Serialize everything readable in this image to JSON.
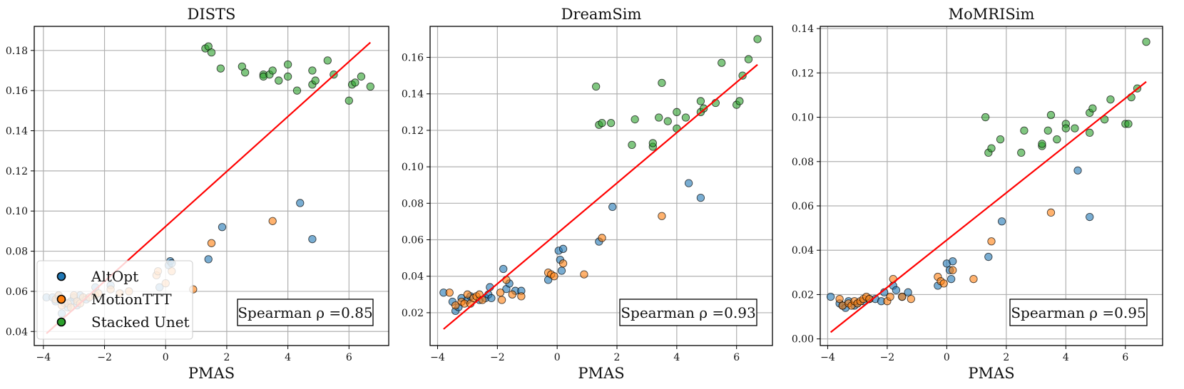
{
  "figure": {
    "legend": [
      {
        "label": "AltOpt",
        "color": "#1f77b4"
      },
      {
        "label": "MotionTTT",
        "color": "#ff7f0e"
      },
      {
        "label": "Stacked Unet",
        "color": "#2ca02c"
      }
    ],
    "fit_color": "#ff0000"
  },
  "chart_data": [
    {
      "type": "scatter",
      "title": "DISTS",
      "xlabel": "PMAS",
      "ylabel": "",
      "xlim": [
        -4.3,
        7.3
      ],
      "ylim": [
        0.033,
        0.192
      ],
      "xticks": [
        -4,
        -2,
        0,
        2,
        4,
        6
      ],
      "xtick_labels": [
        "−4",
        "−2",
        "0",
        "2",
        "4",
        "6"
      ],
      "yticks": [
        0.04,
        0.06,
        0.08,
        0.1,
        0.12,
        0.14,
        0.16,
        0.18
      ],
      "ytick_labels": [
        "0.04",
        "0.06",
        "0.08",
        "0.10",
        "0.12",
        "0.14",
        "0.16",
        "0.18"
      ],
      "grid": true,
      "legend_position": "lower-left",
      "annotation": "Spearman ρ =0.85",
      "fit_line": {
        "x": [
          -3.9,
          6.7
        ],
        "y": [
          0.039,
          0.184
        ]
      },
      "series": [
        {
          "name": "AltOpt",
          "points": [
            [
              -3.9,
              0.057
            ],
            [
              -3.7,
              0.057
            ],
            [
              -3.6,
              0.055
            ],
            [
              -3.5,
              0.058
            ],
            [
              -3.4,
              0.049
            ],
            [
              -3.3,
              0.054
            ],
            [
              -3.2,
              0.052
            ],
            [
              -3.1,
              0.055
            ],
            [
              -3.0,
              0.057
            ],
            [
              -2.9,
              0.053
            ],
            [
              -2.8,
              0.058
            ],
            [
              -2.6,
              0.056
            ],
            [
              -2.3,
              0.062
            ],
            [
              -1.8,
              0.063
            ],
            [
              -0.2,
              0.062
            ],
            [
              0.1,
              0.073
            ],
            [
              0.15,
              0.075
            ],
            [
              0.2,
              0.074
            ],
            [
              1.4,
              0.076
            ],
            [
              1.85,
              0.092
            ],
            [
              4.4,
              0.104
            ],
            [
              4.8,
              0.086
            ]
          ]
        },
        {
          "name": "MotionTTT",
          "points": [
            [
              -3.6,
              0.056
            ],
            [
              -3.5,
              0.058
            ],
            [
              -3.4,
              0.053
            ],
            [
              -3.2,
              0.054
            ],
            [
              -3.1,
              0.052
            ],
            [
              -3.0,
              0.058
            ],
            [
              -2.9,
              0.055
            ],
            [
              -2.8,
              0.054
            ],
            [
              -2.7,
              0.057
            ],
            [
              -2.5,
              0.057
            ],
            [
              -2.3,
              0.058
            ],
            [
              -2.2,
              0.059
            ],
            [
              -1.8,
              0.061
            ],
            [
              -1.5,
              0.059
            ],
            [
              -1.2,
              0.06
            ],
            [
              -0.3,
              0.068
            ],
            [
              -0.25,
              0.07
            ],
            [
              0.0,
              0.064
            ],
            [
              0.2,
              0.07
            ],
            [
              0.9,
              0.061
            ],
            [
              1.5,
              0.084
            ],
            [
              3.5,
              0.095
            ]
          ]
        },
        {
          "name": "Stacked Unet",
          "points": [
            [
              1.3,
              0.181
            ],
            [
              1.4,
              0.182
            ],
            [
              1.5,
              0.179
            ],
            [
              1.8,
              0.171
            ],
            [
              2.5,
              0.172
            ],
            [
              2.6,
              0.169
            ],
            [
              3.2,
              0.168
            ],
            [
              3.2,
              0.167
            ],
            [
              3.4,
              0.168
            ],
            [
              3.5,
              0.17
            ],
            [
              3.7,
              0.165
            ],
            [
              4.0,
              0.173
            ],
            [
              4.0,
              0.167
            ],
            [
              4.3,
              0.16
            ],
            [
              4.8,
              0.17
            ],
            [
              4.8,
              0.163
            ],
            [
              4.9,
              0.165
            ],
            [
              5.3,
              0.175
            ],
            [
              5.5,
              0.168
            ],
            [
              6.0,
              0.155
            ],
            [
              6.1,
              0.163
            ],
            [
              6.2,
              0.164
            ],
            [
              6.4,
              0.167
            ],
            [
              6.7,
              0.162
            ]
          ]
        }
      ]
    },
    {
      "type": "scatter",
      "title": "DreamSim",
      "xlabel": "PMAS",
      "ylabel": "",
      "xlim": [
        -4.25,
        7.2
      ],
      "ylim": [
        0.002,
        0.177
      ],
      "xticks": [
        -4,
        -2,
        0,
        2,
        4,
        6
      ],
      "xtick_labels": [
        "−4",
        "−2",
        "0",
        "2",
        "4",
        "6"
      ],
      "yticks": [
        0.02,
        0.04,
        0.06,
        0.08,
        0.1,
        0.12,
        0.14,
        0.16
      ],
      "ytick_labels": [
        "0.02",
        "0.04",
        "0.06",
        "0.08",
        "0.10",
        "0.12",
        "0.14",
        "0.16"
      ],
      "grid": true,
      "annotation": "Spearman ρ =0.93",
      "fit_line": {
        "x": [
          -3.8,
          6.7
        ],
        "y": [
          0.011,
          0.156
        ]
      },
      "series": [
        {
          "name": "AltOpt",
          "points": [
            [
              -3.8,
              0.031
            ],
            [
              -3.5,
              0.026
            ],
            [
              -3.4,
              0.021
            ],
            [
              -3.3,
              0.023
            ],
            [
              -3.2,
              0.028
            ],
            [
              -3.0,
              0.027
            ],
            [
              -2.9,
              0.029
            ],
            [
              -2.6,
              0.027
            ],
            [
              -2.4,
              0.028
            ],
            [
              -2.3,
              0.03
            ],
            [
              -2.25,
              0.034
            ],
            [
              -2.2,
              0.028
            ],
            [
              -1.8,
              0.044
            ],
            [
              -1.7,
              0.033
            ],
            [
              -1.6,
              0.036
            ],
            [
              -1.4,
              0.032
            ],
            [
              -1.2,
              0.032
            ],
            [
              -0.3,
              0.038
            ],
            [
              0.05,
              0.054
            ],
            [
              0.1,
              0.049
            ],
            [
              0.15,
              0.043
            ],
            [
              0.2,
              0.055
            ],
            [
              1.4,
              0.059
            ],
            [
              1.85,
              0.078
            ],
            [
              4.4,
              0.091
            ],
            [
              4.8,
              0.083
            ]
          ]
        },
        {
          "name": "MotionTTT",
          "points": [
            [
              -3.6,
              0.031
            ],
            [
              -3.4,
              0.024
            ],
            [
              -3.2,
              0.026
            ],
            [
              -3.1,
              0.025
            ],
            [
              -3.0,
              0.03
            ],
            [
              -2.9,
              0.025
            ],
            [
              -2.8,
              0.028
            ],
            [
              -2.7,
              0.029
            ],
            [
              -2.6,
              0.03
            ],
            [
              -2.5,
              0.027
            ],
            [
              -1.9,
              0.031
            ],
            [
              -1.85,
              0.027
            ],
            [
              -1.7,
              0.038
            ],
            [
              -1.5,
              0.03
            ],
            [
              -1.2,
              0.029
            ],
            [
              -0.3,
              0.042
            ],
            [
              -0.2,
              0.041
            ],
            [
              -0.1,
              0.04
            ],
            [
              0.2,
              0.047
            ],
            [
              0.9,
              0.041
            ],
            [
              1.5,
              0.061
            ],
            [
              3.5,
              0.073
            ]
          ]
        },
        {
          "name": "Stacked Unet",
          "points": [
            [
              1.3,
              0.144
            ],
            [
              1.4,
              0.123
            ],
            [
              1.5,
              0.124
            ],
            [
              1.8,
              0.124
            ],
            [
              2.5,
              0.112
            ],
            [
              2.6,
              0.126
            ],
            [
              3.2,
              0.111
            ],
            [
              3.2,
              0.113
            ],
            [
              3.4,
              0.127
            ],
            [
              3.5,
              0.146
            ],
            [
              3.7,
              0.125
            ],
            [
              4.0,
              0.13
            ],
            [
              4.0,
              0.121
            ],
            [
              4.3,
              0.127
            ],
            [
              4.8,
              0.136
            ],
            [
              4.8,
              0.13
            ],
            [
              4.9,
              0.132
            ],
            [
              5.3,
              0.135
            ],
            [
              5.5,
              0.157
            ],
            [
              6.0,
              0.134
            ],
            [
              6.1,
              0.136
            ],
            [
              6.2,
              0.15
            ],
            [
              6.4,
              0.159
            ],
            [
              6.7,
              0.17
            ]
          ]
        }
      ]
    },
    {
      "type": "scatter",
      "title": "MoMRISim",
      "xlabel": "PMAS",
      "ylabel": "",
      "xlim": [
        -4.25,
        7.25
      ],
      "ylim": [
        -0.003,
        0.141
      ],
      "xticks": [
        -4,
        -2,
        0,
        2,
        4,
        6
      ],
      "xtick_labels": [
        "−4",
        "−2",
        "0",
        "2",
        "4",
        "6"
      ],
      "yticks": [
        0.0,
        0.02,
        0.04,
        0.06,
        0.08,
        0.1,
        0.12,
        0.14
      ],
      "ytick_labels": [
        "0.00",
        "0.02",
        "0.04",
        "0.06",
        "0.08",
        "0.10",
        "0.12",
        "0.14"
      ],
      "grid": true,
      "annotation": "Spearman ρ =0.95",
      "fit_line": {
        "x": [
          -3.9,
          6.7
        ],
        "y": [
          0.003,
          0.116
        ]
      },
      "series": [
        {
          "name": "AltOpt",
          "points": [
            [
              -3.9,
              0.019
            ],
            [
              -3.6,
              0.016
            ],
            [
              -3.5,
              0.015
            ],
            [
              -3.4,
              0.014
            ],
            [
              -3.3,
              0.017
            ],
            [
              -3.1,
              0.015
            ],
            [
              -3.0,
              0.016
            ],
            [
              -2.8,
              0.017
            ],
            [
              -2.6,
              0.018
            ],
            [
              -2.4,
              0.018
            ],
            [
              -2.2,
              0.017
            ],
            [
              -2.1,
              0.021
            ],
            [
              -1.8,
              0.024
            ],
            [
              -1.7,
              0.022
            ],
            [
              -1.5,
              0.019
            ],
            [
              -1.3,
              0.021
            ],
            [
              -0.3,
              0.024
            ],
            [
              0.0,
              0.034
            ],
            [
              0.1,
              0.031
            ],
            [
              0.15,
              0.027
            ],
            [
              0.2,
              0.035
            ],
            [
              1.4,
              0.037
            ],
            [
              1.85,
              0.053
            ],
            [
              4.4,
              0.076
            ],
            [
              4.8,
              0.055
            ]
          ]
        },
        {
          "name": "MotionTTT",
          "points": [
            [
              -3.6,
              0.018
            ],
            [
              -3.5,
              0.015
            ],
            [
              -3.3,
              0.016
            ],
            [
              -3.2,
              0.015
            ],
            [
              -3.1,
              0.017
            ],
            [
              -3.0,
              0.016
            ],
            [
              -2.9,
              0.017
            ],
            [
              -2.8,
              0.018
            ],
            [
              -2.7,
              0.019
            ],
            [
              -2.6,
              0.018
            ],
            [
              -2.0,
              0.017
            ],
            [
              -1.9,
              0.019
            ],
            [
              -1.8,
              0.027
            ],
            [
              -1.5,
              0.019
            ],
            [
              -1.2,
              0.018
            ],
            [
              -0.3,
              0.028
            ],
            [
              -0.2,
              0.026
            ],
            [
              -0.1,
              0.025
            ],
            [
              0.2,
              0.031
            ],
            [
              0.9,
              0.027
            ],
            [
              1.5,
              0.044
            ],
            [
              3.5,
              0.057
            ]
          ]
        },
        {
          "name": "Stacked Unet",
          "points": [
            [
              1.3,
              0.1
            ],
            [
              1.4,
              0.084
            ],
            [
              1.5,
              0.086
            ],
            [
              1.8,
              0.09
            ],
            [
              2.5,
              0.084
            ],
            [
              2.6,
              0.094
            ],
            [
              3.2,
              0.087
            ],
            [
              3.2,
              0.088
            ],
            [
              3.4,
              0.094
            ],
            [
              3.5,
              0.101
            ],
            [
              3.7,
              0.09
            ],
            [
              4.0,
              0.097
            ],
            [
              4.0,
              0.095
            ],
            [
              4.3,
              0.095
            ],
            [
              4.8,
              0.102
            ],
            [
              4.8,
              0.093
            ],
            [
              4.9,
              0.104
            ],
            [
              5.3,
              0.099
            ],
            [
              5.5,
              0.108
            ],
            [
              6.0,
              0.097
            ],
            [
              6.1,
              0.097
            ],
            [
              6.2,
              0.109
            ],
            [
              6.4,
              0.113
            ],
            [
              6.7,
              0.134
            ]
          ]
        }
      ]
    }
  ]
}
